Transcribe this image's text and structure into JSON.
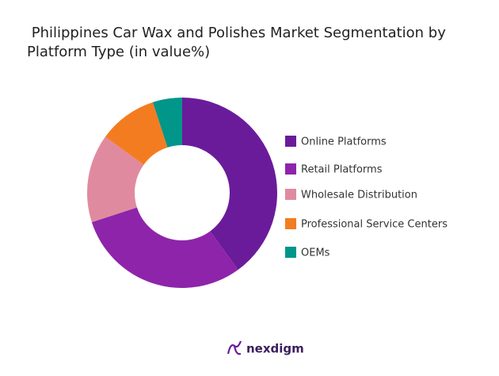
{
  "chart_data": {
    "type": "donut",
    "title": " Philippines Car Wax and Polishes Market Segmentation by Platform Type (in value%)",
    "categories": [
      "Online Platforms",
      "Retail Platforms",
      "Wholesale Distribution",
      "Professional Service Centers",
      "OEMs"
    ],
    "values": [
      40,
      30,
      15,
      10,
      5
    ],
    "colors": [
      "#6a1b9a",
      "#8e24aa",
      "#e08aa0",
      "#f47c20",
      "#00968a"
    ]
  },
  "brand": "nexdigm"
}
